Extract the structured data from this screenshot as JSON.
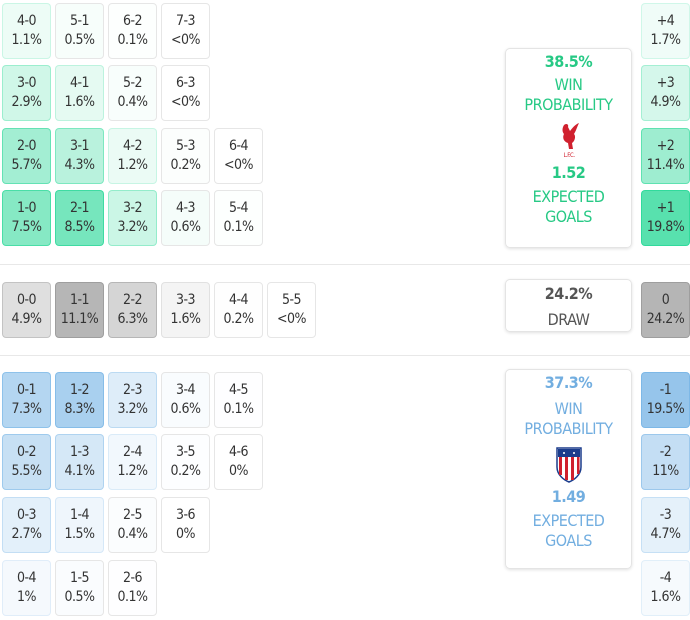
{
  "colors": {
    "home": "#2ed99a",
    "away": "#7ab6e6",
    "draw": "#9a9a9a"
  },
  "home_rows": [
    [
      [
        "4-0",
        "1.1%"
      ],
      [
        "5-1",
        "0.5%"
      ],
      [
        "6-2",
        "0.1%"
      ],
      [
        "7-3",
        "<0%"
      ]
    ],
    [
      [
        "3-0",
        "2.9%"
      ],
      [
        "4-1",
        "1.6%"
      ],
      [
        "5-2",
        "0.4%"
      ],
      [
        "6-3",
        "<0%"
      ]
    ],
    [
      [
        "2-0",
        "5.7%"
      ],
      [
        "3-1",
        "4.3%"
      ],
      [
        "4-2",
        "1.2%"
      ],
      [
        "5-3",
        "0.2%"
      ],
      [
        "6-4",
        "<0%"
      ]
    ],
    [
      [
        "1-0",
        "7.5%"
      ],
      [
        "2-1",
        "8.5%"
      ],
      [
        "3-2",
        "3.2%"
      ],
      [
        "4-3",
        "0.6%"
      ],
      [
        "5-4",
        "0.1%"
      ]
    ]
  ],
  "draw_row": [
    [
      "0-0",
      "4.9%"
    ],
    [
      "1-1",
      "11.1%"
    ],
    [
      "2-2",
      "6.3%"
    ],
    [
      "3-3",
      "1.6%"
    ],
    [
      "4-4",
      "0.2%"
    ],
    [
      "5-5",
      "<0%"
    ]
  ],
  "away_rows": [
    [
      [
        "0-1",
        "7.3%"
      ],
      [
        "1-2",
        "8.3%"
      ],
      [
        "2-3",
        "3.2%"
      ],
      [
        "3-4",
        "0.6%"
      ],
      [
        "4-5",
        "0.1%"
      ]
    ],
    [
      [
        "0-2",
        "5.5%"
      ],
      [
        "1-3",
        "4.1%"
      ],
      [
        "2-4",
        "1.2%"
      ],
      [
        "3-5",
        "0.2%"
      ],
      [
        "4-6",
        "0%"
      ]
    ],
    [
      [
        "0-3",
        "2.7%"
      ],
      [
        "1-4",
        "1.5%"
      ],
      [
        "2-5",
        "0.4%"
      ],
      [
        "3-6",
        "0%"
      ]
    ],
    [
      [
        "0-4",
        "1%"
      ],
      [
        "1-5",
        "0.5%"
      ],
      [
        "2-6",
        "0.1%"
      ]
    ]
  ],
  "margins_home": [
    [
      "+4",
      "1.7%"
    ],
    [
      "+3",
      "4.9%"
    ],
    [
      "+2",
      "11.4%"
    ],
    [
      "+1",
      "19.8%"
    ]
  ],
  "margin_draw": [
    [
      "0",
      "24.2%"
    ]
  ],
  "margins_away": [
    [
      "-1",
      "19.5%"
    ],
    [
      "-2",
      "11%"
    ],
    [
      "-3",
      "4.7%"
    ],
    [
      "-4",
      "1.6%"
    ]
  ],
  "home": {
    "win_pct": "38.5%",
    "win_label_1": "WIN",
    "win_label_2": "PROBABILITY",
    "xg": "1.52",
    "xg_label_1": "EXPECTED",
    "xg_label_2": "GOALS",
    "crest_text": "L.F.C.",
    "crest": "liverpool-crest"
  },
  "draw": {
    "pct": "24.2%",
    "label": "DRAW"
  },
  "away": {
    "win_pct": "37.3%",
    "win_label_1": "WIN",
    "win_label_2": "PROBABILITY",
    "xg": "1.49",
    "xg_label_1": "EXPECTED",
    "xg_label_2": "GOALS",
    "crest": "atletico-madrid-crest"
  }
}
